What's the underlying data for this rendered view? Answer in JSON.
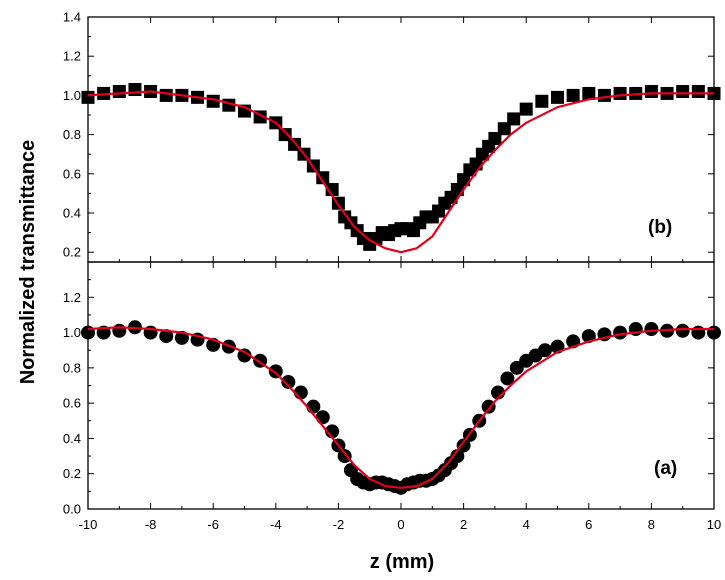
{
  "chart_data": [
    {
      "panel": "b",
      "type": "scatter",
      "marker": "square",
      "annotation": "(b)",
      "xlim": [
        -10,
        10
      ],
      "ylim": [
        0.15,
        1.4
      ],
      "yticks": [
        "0.2",
        "0.4",
        "0.6",
        "0.8",
        "1.0",
        "1.2",
        "1.4"
      ],
      "series": [
        {
          "kind": "points",
          "x": [
            -10.0,
            -9.5,
            -9.0,
            -8.5,
            -8.0,
            -7.5,
            -7.0,
            -6.5,
            -6.0,
            -5.5,
            -5.0,
            -4.5,
            -4.0,
            -3.7,
            -3.4,
            -3.1,
            -2.8,
            -2.5,
            -2.2,
            -2.0,
            -1.8,
            -1.6,
            -1.4,
            -1.2,
            -1.0,
            -0.8,
            -0.6,
            -0.4,
            -0.2,
            0.0,
            0.2,
            0.4,
            0.6,
            0.8,
            1.0,
            1.2,
            1.4,
            1.6,
            1.8,
            2.0,
            2.2,
            2.4,
            2.6,
            2.8,
            3.0,
            3.3,
            3.6,
            4.0,
            4.5,
            5.0,
            5.5,
            6.0,
            6.5,
            7.0,
            7.5,
            8.0,
            8.5,
            9.0,
            9.5,
            10.0
          ],
          "y": [
            0.99,
            1.01,
            1.02,
            1.03,
            1.02,
            1.0,
            1.0,
            0.99,
            0.97,
            0.95,
            0.92,
            0.89,
            0.86,
            0.8,
            0.75,
            0.7,
            0.64,
            0.58,
            0.52,
            0.45,
            0.38,
            0.35,
            0.31,
            0.27,
            0.24,
            0.27,
            0.3,
            0.29,
            0.31,
            0.32,
            0.32,
            0.31,
            0.35,
            0.38,
            0.38,
            0.41,
            0.45,
            0.48,
            0.52,
            0.57,
            0.62,
            0.65,
            0.7,
            0.74,
            0.78,
            0.83,
            0.88,
            0.93,
            0.97,
            0.99,
            1.0,
            1.01,
            1.0,
            1.01,
            1.01,
            1.02,
            1.01,
            1.02,
            1.02,
            1.01
          ]
        },
        {
          "kind": "fit",
          "color": "#e0001b",
          "x": [
            -10.0,
            -9.0,
            -8.0,
            -7.0,
            -6.0,
            -5.0,
            -4.0,
            -3.5,
            -3.0,
            -2.5,
            -2.0,
            -1.5,
            -1.0,
            -0.5,
            0.0,
            0.5,
            1.0,
            1.5,
            2.0,
            2.5,
            3.0,
            3.5,
            4.0,
            5.0,
            6.0,
            7.0,
            8.0,
            9.0,
            10.0
          ],
          "y": [
            1.0,
            1.01,
            1.02,
            1.0,
            0.98,
            0.94,
            0.86,
            0.78,
            0.68,
            0.56,
            0.44,
            0.33,
            0.26,
            0.22,
            0.2,
            0.22,
            0.28,
            0.4,
            0.52,
            0.63,
            0.72,
            0.8,
            0.86,
            0.94,
            0.98,
            1.0,
            1.01,
            1.01,
            1.01
          ]
        }
      ]
    },
    {
      "panel": "a",
      "type": "scatter",
      "marker": "circle",
      "annotation": "(a)",
      "xlim": [
        -10,
        10
      ],
      "ylim": [
        0.0,
        1.4
      ],
      "yticks": [
        "0.0",
        "0.2",
        "0.4",
        "0.6",
        "0.8",
        "1.0",
        "1.2"
      ],
      "xticks": [
        "-10",
        "-8",
        "-6",
        "-4",
        "-2",
        "0",
        "2",
        "4",
        "6",
        "8",
        "10"
      ],
      "series": [
        {
          "kind": "points",
          "x": [
            -10.0,
            -9.5,
            -9.0,
            -8.5,
            -8.0,
            -7.5,
            -7.0,
            -6.5,
            -6.0,
            -5.5,
            -5.0,
            -4.5,
            -4.0,
            -3.6,
            -3.2,
            -2.8,
            -2.5,
            -2.2,
            -2.0,
            -1.8,
            -1.6,
            -1.4,
            -1.2,
            -1.0,
            -0.8,
            -0.6,
            -0.4,
            -0.2,
            0.0,
            0.2,
            0.4,
            0.6,
            0.8,
            1.0,
            1.2,
            1.4,
            1.6,
            1.8,
            2.0,
            2.2,
            2.5,
            2.8,
            3.1,
            3.4,
            3.7,
            4.0,
            4.3,
            4.6,
            5.0,
            5.5,
            6.0,
            6.5,
            7.0,
            7.5,
            8.0,
            8.5,
            9.0,
            9.5,
            10.0
          ],
          "y": [
            1.0,
            1.0,
            1.01,
            1.03,
            1.0,
            0.98,
            0.97,
            0.96,
            0.93,
            0.92,
            0.87,
            0.84,
            0.78,
            0.72,
            0.66,
            0.58,
            0.52,
            0.44,
            0.36,
            0.3,
            0.22,
            0.17,
            0.15,
            0.14,
            0.15,
            0.15,
            0.14,
            0.13,
            0.12,
            0.14,
            0.15,
            0.16,
            0.16,
            0.17,
            0.19,
            0.22,
            0.26,
            0.3,
            0.36,
            0.42,
            0.5,
            0.58,
            0.66,
            0.74,
            0.8,
            0.84,
            0.87,
            0.9,
            0.92,
            0.95,
            0.98,
            0.99,
            1.0,
            1.02,
            1.02,
            1.01,
            1.01,
            1.0,
            1.0
          ]
        },
        {
          "kind": "fit",
          "color": "#e0001b",
          "x": [
            -10.0,
            -9.0,
            -8.0,
            -7.0,
            -6.0,
            -5.0,
            -4.0,
            -3.5,
            -3.0,
            -2.5,
            -2.0,
            -1.5,
            -1.0,
            -0.5,
            0.0,
            0.5,
            1.0,
            1.5,
            2.0,
            2.5,
            3.0,
            3.5,
            4.0,
            5.0,
            6.0,
            7.0,
            8.0,
            9.0,
            10.0
          ],
          "y": [
            1.02,
            1.03,
            1.02,
            1.0,
            0.96,
            0.89,
            0.77,
            0.68,
            0.58,
            0.47,
            0.36,
            0.25,
            0.17,
            0.13,
            0.12,
            0.13,
            0.17,
            0.26,
            0.38,
            0.5,
            0.61,
            0.7,
            0.78,
            0.89,
            0.95,
            0.99,
            1.01,
            1.02,
            1.02
          ]
        }
      ]
    }
  ],
  "xlabel": "z (mm)",
  "ylabel": "Normalized transmittance"
}
